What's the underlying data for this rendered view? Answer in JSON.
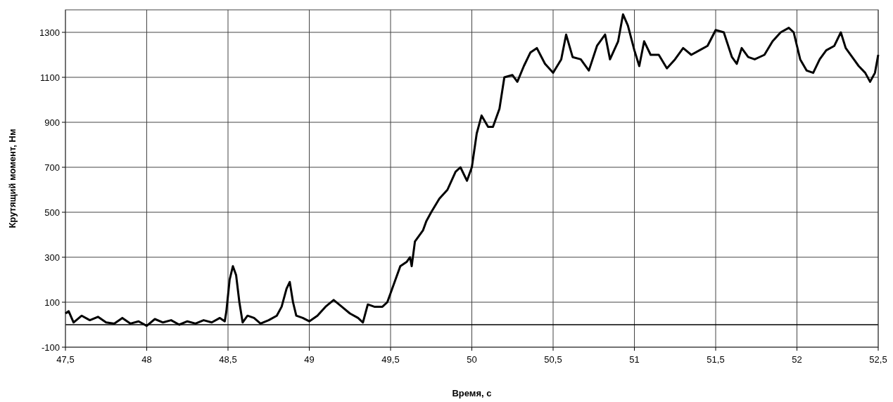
{
  "chart_data": {
    "type": "line",
    "xlabel": "Время, с",
    "ylabel": "Крутящий момент, Нм",
    "xlim": [
      47.5,
      52.5
    ],
    "ylim": [
      -100,
      1400
    ],
    "xticks": [
      {
        "value": 47.5,
        "label": "47,5"
      },
      48,
      {
        "value": 48.5,
        "label": "48,5"
      },
      49,
      {
        "value": 49.5,
        "label": "49,5"
      },
      50,
      {
        "value": 50.5,
        "label": "50,5"
      },
      51,
      {
        "value": 51.5,
        "label": "51,5"
      },
      52,
      {
        "value": 52.5,
        "label": "52,5"
      }
    ],
    "yticks": [
      -100,
      100,
      300,
      500,
      700,
      900,
      1100,
      1300
    ],
    "grid": true,
    "ref_lines": [
      {
        "axis": "y",
        "value": 0,
        "color": "#000000"
      }
    ],
    "series": [
      {
        "color": "#000000",
        "x": [
          47.5,
          47.52,
          47.55,
          47.6,
          47.65,
          47.7,
          47.75,
          47.8,
          47.85,
          47.9,
          47.95,
          48.0,
          48.05,
          48.1,
          48.15,
          48.2,
          48.25,
          48.3,
          48.35,
          48.4,
          48.45,
          48.48,
          48.49,
          48.51,
          48.53,
          48.55,
          48.57,
          48.59,
          48.62,
          48.66,
          48.7,
          48.75,
          48.8,
          48.83,
          48.86,
          48.88,
          48.9,
          48.92,
          48.96,
          49.0,
          49.05,
          49.1,
          49.15,
          49.2,
          49.25,
          49.3,
          49.33,
          49.36,
          49.4,
          49.45,
          49.48,
          49.5,
          49.53,
          49.56,
          49.6,
          49.62,
          49.63,
          49.65,
          49.7,
          49.72,
          49.75,
          49.8,
          49.85,
          49.9,
          49.93,
          49.97,
          50.0,
          50.03,
          50.06,
          50.1,
          50.13,
          50.17,
          50.2,
          50.25,
          50.28,
          50.32,
          50.36,
          50.4,
          50.45,
          50.5,
          50.55,
          50.58,
          50.62,
          50.67,
          50.72,
          50.77,
          50.82,
          50.85,
          50.9,
          50.93,
          50.96,
          51.0,
          51.03,
          51.06,
          51.1,
          51.15,
          51.2,
          51.25,
          51.3,
          51.35,
          51.4,
          51.45,
          51.5,
          51.55,
          51.6,
          51.63,
          51.66,
          51.7,
          51.74,
          51.8,
          51.85,
          51.9,
          51.95,
          51.98,
          52.02,
          52.06,
          52.1,
          52.14,
          52.18,
          52.23,
          52.27,
          52.3,
          52.35,
          52.38,
          52.42,
          52.45,
          52.48,
          52.5
        ],
        "values": [
          50,
          60,
          10,
          40,
          20,
          35,
          10,
          5,
          30,
          5,
          15,
          -5,
          25,
          10,
          20,
          0,
          15,
          5,
          20,
          10,
          30,
          15,
          60,
          200,
          260,
          220,
          100,
          10,
          40,
          30,
          5,
          20,
          40,
          80,
          160,
          190,
          100,
          40,
          30,
          15,
          40,
          80,
          110,
          80,
          50,
          30,
          10,
          90,
          80,
          80,
          100,
          140,
          200,
          260,
          280,
          300,
          260,
          370,
          420,
          460,
          500,
          560,
          600,
          680,
          700,
          640,
          700,
          850,
          930,
          880,
          880,
          960,
          1100,
          1110,
          1080,
          1150,
          1210,
          1230,
          1160,
          1120,
          1180,
          1290,
          1190,
          1180,
          1130,
          1240,
          1290,
          1180,
          1260,
          1380,
          1330,
          1220,
          1150,
          1260,
          1200,
          1200,
          1140,
          1180,
          1230,
          1200,
          1220,
          1240,
          1310,
          1300,
          1190,
          1160,
          1230,
          1190,
          1180,
          1200,
          1260,
          1300,
          1320,
          1300,
          1180,
          1130,
          1120,
          1180,
          1220,
          1240,
          1300,
          1230,
          1180,
          1150,
          1120,
          1080,
          1120,
          1200
        ]
      }
    ]
  }
}
